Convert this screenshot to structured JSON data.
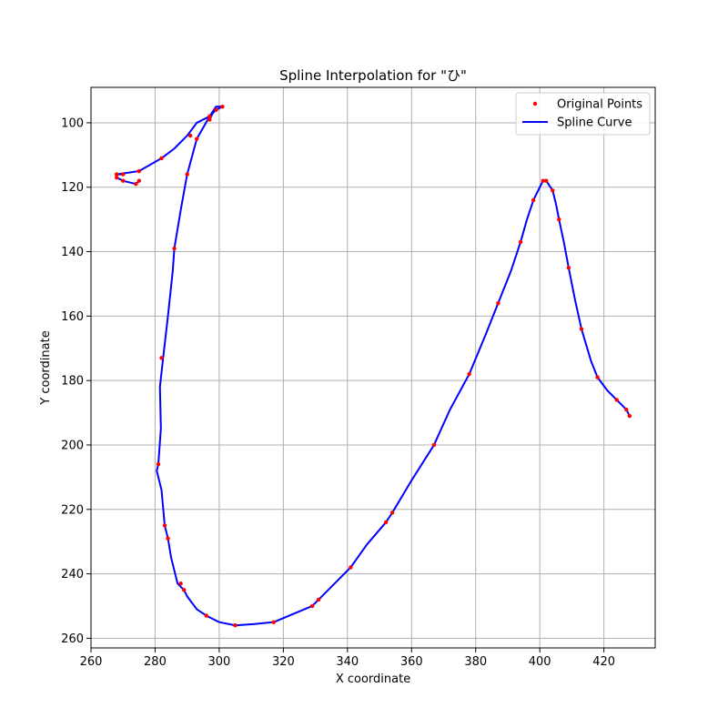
{
  "chart_data": {
    "type": "line",
    "title": "Spline Interpolation for \"ひ\"",
    "xlabel": "X coordinate",
    "ylabel": "Y coordinate",
    "xlim": [
      260,
      436
    ],
    "ylim": [
      263,
      89
    ],
    "y_inverted": true,
    "grid": true,
    "legend_placement": "top-right",
    "x_ticks": [
      260,
      280,
      300,
      320,
      340,
      360,
      380,
      400,
      420
    ],
    "y_ticks": [
      100,
      120,
      140,
      160,
      180,
      200,
      220,
      240,
      260
    ],
    "legend": [
      "Original Points",
      "Spline Curve"
    ],
    "colors": {
      "points": "#ff0000",
      "curve": "#0000ff"
    },
    "series": [
      {
        "name": "Original Points",
        "kind": "scatter",
        "x": [
          301,
          299,
          297,
          293,
          290,
          282,
          275,
          268,
          268,
          270,
          274,
          275,
          270,
          268,
          297,
          291,
          286,
          282,
          281,
          283,
          284,
          288,
          289,
          296,
          305,
          317,
          329,
          331,
          341,
          352,
          354,
          367,
          378,
          387,
          394,
          398,
          401,
          402,
          404,
          406,
          409,
          413,
          418,
          424,
          427,
          428
        ],
        "y": [
          95,
          96,
          98,
          105,
          116,
          111,
          115,
          116,
          117,
          118,
          119,
          118,
          116,
          116,
          99,
          104,
          139,
          173,
          206,
          225,
          229,
          243,
          245,
          253,
          256,
          255,
          250,
          248,
          238,
          224,
          221,
          200,
          178,
          156,
          137,
          124,
          118,
          118,
          121,
          130,
          145,
          164,
          179,
          186,
          189,
          191
        ]
      },
      {
        "name": "Spline Curve",
        "kind": "line",
        "x": [
          301,
          299,
          297,
          293,
          290,
          288,
          286,
          285.5,
          284,
          282.5,
          281.5,
          281.8,
          281,
          280.5,
          282,
          283,
          283.5,
          284,
          285,
          287,
          289,
          290,
          293,
          296,
          300,
          305,
          311,
          317,
          323,
          329,
          331,
          336,
          341,
          346,
          352,
          354,
          360,
          367,
          372,
          378,
          383,
          387,
          391,
          394,
          396,
          398,
          400,
          401,
          402,
          403,
          404,
          405,
          406,
          407.5,
          409,
          411,
          413,
          416,
          418,
          421,
          424,
          427,
          428
        ],
        "y": [
          95,
          96,
          98,
          105,
          116,
          127,
          139,
          146,
          160,
          173,
          182,
          195,
          206,
          208,
          214,
          225,
          227,
          229,
          235,
          243,
          245,
          247,
          251,
          253,
          255,
          256,
          255.6,
          255,
          252.5,
          250,
          248,
          243,
          238,
          231,
          224,
          221,
          211,
          200,
          189,
          178,
          166,
          156,
          146,
          137,
          130,
          124,
          120,
          118,
          118,
          119.5,
          121,
          125,
          130,
          137,
          145,
          155,
          164,
          174,
          179,
          183,
          186,
          189,
          191
        ]
      },
      {
        "name": "",
        "kind": "line",
        "x": [
          301,
          299,
          297,
          293,
          290,
          286,
          282,
          275,
          268,
          268,
          270,
          274,
          275
        ],
        "y": [
          95,
          95,
          98,
          100,
          104,
          108,
          111,
          115,
          116,
          117,
          118,
          119,
          118
        ]
      },
      {
        "name": "",
        "kind": "line",
        "x": [
          297,
          299,
          301
        ],
        "y": [
          99,
          95,
          95
        ]
      },
      {
        "name": "",
        "kind": "line",
        "x": [
          270,
          268
        ],
        "y": [
          116,
          116
        ]
      }
    ]
  }
}
